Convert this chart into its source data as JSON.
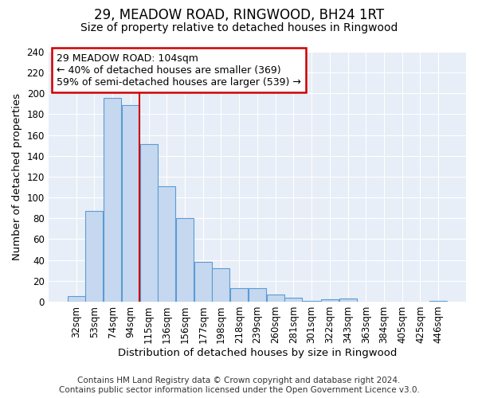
{
  "title": "29, MEADOW ROAD, RINGWOOD, BH24 1RT",
  "subtitle": "Size of property relative to detached houses in Ringwood",
  "xlabel": "Distribution of detached houses by size in Ringwood",
  "ylabel": "Number of detached properties",
  "bin_labels": [
    "32sqm",
    "53sqm",
    "74sqm",
    "94sqm",
    "115sqm",
    "136sqm",
    "156sqm",
    "177sqm",
    "198sqm",
    "218sqm",
    "239sqm",
    "260sqm",
    "281sqm",
    "301sqm",
    "322sqm",
    "343sqm",
    "363sqm",
    "384sqm",
    "405sqm",
    "425sqm",
    "446sqm"
  ],
  "bar_heights": [
    5,
    87,
    196,
    189,
    151,
    111,
    80,
    38,
    32,
    13,
    13,
    7,
    4,
    1,
    2,
    3,
    0,
    0,
    0,
    0,
    1
  ],
  "bar_color": "#c5d8ef",
  "bar_edge_color": "#5b9bd5",
  "vline_x": 3.5,
  "vline_color": "#cc0000",
  "annotation_text": "29 MEADOW ROAD: 104sqm\n← 40% of detached houses are smaller (369)\n59% of semi-detached houses are larger (539) →",
  "annotation_box_color": "#cc0000",
  "ylim": [
    0,
    240
  ],
  "yticks": [
    0,
    20,
    40,
    60,
    80,
    100,
    120,
    140,
    160,
    180,
    200,
    220,
    240
  ],
  "footer_line1": "Contains HM Land Registry data © Crown copyright and database right 2024.",
  "footer_line2": "Contains public sector information licensed under the Open Government Licence v3.0.",
  "plot_background_color": "#e8eef7",
  "fig_background_color": "#ffffff",
  "grid_color": "#ffffff",
  "title_fontsize": 12,
  "subtitle_fontsize": 10,
  "axis_label_fontsize": 9.5,
  "tick_fontsize": 8.5,
  "annotation_fontsize": 9,
  "footer_fontsize": 7.5
}
